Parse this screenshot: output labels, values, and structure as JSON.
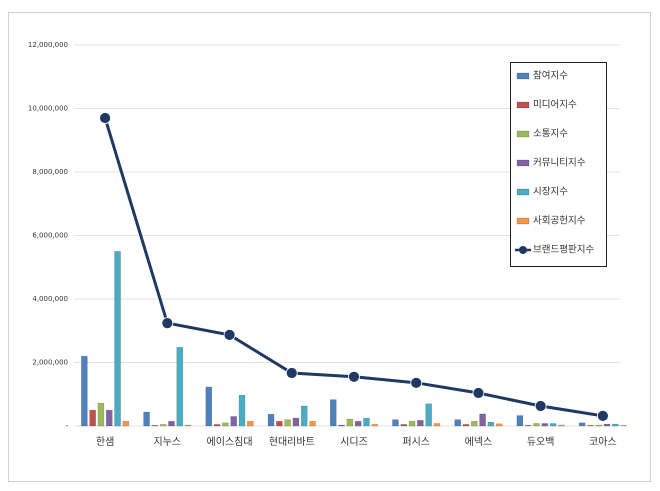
{
  "chart_data": {
    "type": "bar",
    "categories": [
      "한샘",
      "지누스",
      "에이스침대",
      "현대리바트",
      "시디즈",
      "퍼시스",
      "에넥스",
      "듀오백",
      "코아스"
    ],
    "series": [
      {
        "name": "참여지수",
        "color": "#4f81bd",
        "values": [
          2200000,
          440000,
          1230000,
          370000,
          830000,
          200000,
          200000,
          330000,
          100000
        ]
      },
      {
        "name": "미디어지수",
        "color": "#c0504d",
        "values": [
          500000,
          20000,
          50000,
          150000,
          30000,
          50000,
          50000,
          20000,
          20000
        ]
      },
      {
        "name": "소통지수",
        "color": "#9bbb59",
        "values": [
          720000,
          50000,
          100000,
          200000,
          220000,
          150000,
          150000,
          80000,
          30000
        ]
      },
      {
        "name": "커뮤니티지수",
        "color": "#8064a2",
        "values": [
          500000,
          150000,
          300000,
          250000,
          150000,
          180000,
          380000,
          80000,
          60000
        ]
      },
      {
        "name": "시장지수",
        "color": "#4bacc6",
        "values": [
          5500000,
          2480000,
          970000,
          630000,
          250000,
          700000,
          120000,
          80000,
          60000
        ]
      },
      {
        "name": "사회공헌지수",
        "color": "#f79646",
        "values": [
          150000,
          30000,
          150000,
          150000,
          50000,
          80000,
          70000,
          30000,
          20000
        ]
      },
      {
        "name": "브랜드평판지수",
        "color": "#1f3864",
        "type": "line",
        "values": [
          9700000,
          3240000,
          2870000,
          1670000,
          1550000,
          1360000,
          1040000,
          630000,
          320000
        ]
      }
    ],
    "ylim": [
      0,
      12000000
    ],
    "yticks": [
      {
        "value": 0,
        "label": "-"
      },
      {
        "value": 2000000,
        "label": "2,000,000"
      },
      {
        "value": 4000000,
        "label": "4,000,000"
      },
      {
        "value": 6000000,
        "label": "6,000,000"
      },
      {
        "value": 8000000,
        "label": "8,000,000"
      },
      {
        "value": 10000000,
        "label": "10,000,000"
      },
      {
        "value": 12000000,
        "label": "12,000,000"
      }
    ],
    "grid": true,
    "legend": "top-right"
  }
}
